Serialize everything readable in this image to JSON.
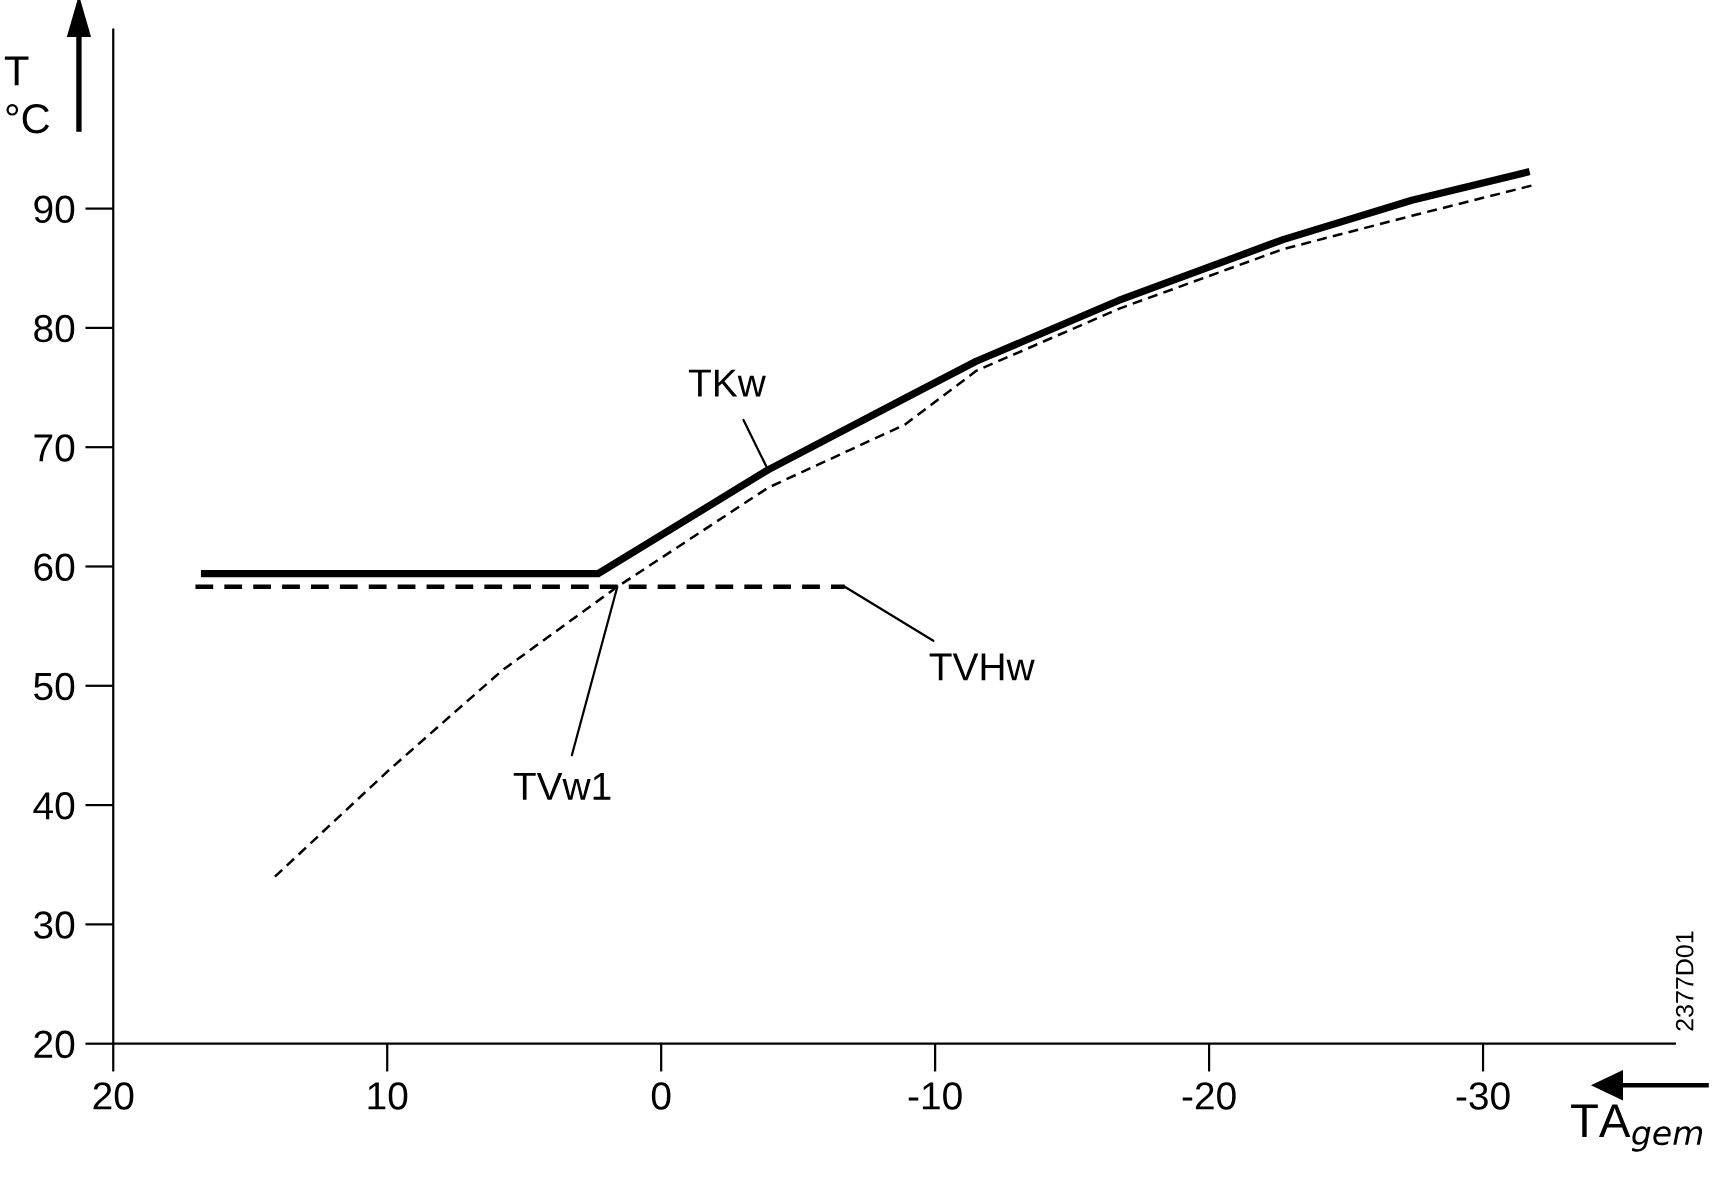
{
  "chart_data": {
    "type": "line",
    "ylabel": "T\n°C",
    "xlabel": "TA$_{gem}$",
    "xlim": [
      20,
      -37
    ],
    "xticks": [
      20,
      10,
      0,
      -10,
      -20,
      -30
    ],
    "ylim": [
      20,
      105
    ],
    "yticks": [
      20,
      30,
      40,
      50,
      60,
      70,
      80,
      90
    ],
    "grid": false,
    "marker": "none",
    "annotations": [
      "2377D01"
    ],
    "series": [
      {
        "name": "TKw",
        "color": "#000000",
        "line_style": "solid",
        "x": [
          16.8,
          2.3,
          -3.9,
          -8.9,
          -11.5,
          -16.7,
          -22.7,
          -27.4,
          -31.7
        ],
        "values": [
          59.4,
          59.4,
          68.1,
          74.1,
          77.2,
          82.3,
          87.4,
          90.7,
          93.1
        ]
      },
      {
        "name": "TVHw",
        "color": "#000000",
        "line_style": "dashed",
        "x": [
          17.0,
          -6.7
        ],
        "values": [
          58.3,
          58.3
        ]
      },
      {
        "name": "TVw1",
        "color": "#000000",
        "line_style": "dashed",
        "x": [
          14.1,
          10.0,
          5.8,
          1.6,
          -3.9,
          -8.9,
          -11.5,
          -16.7,
          -22.7,
          -27.4,
          -31.9
        ],
        "values": [
          34.0,
          42.8,
          51.3,
          58.3,
          66.6,
          71.9,
          76.4,
          81.6,
          86.6,
          89.4,
          92.0
        ]
      }
    ]
  }
}
